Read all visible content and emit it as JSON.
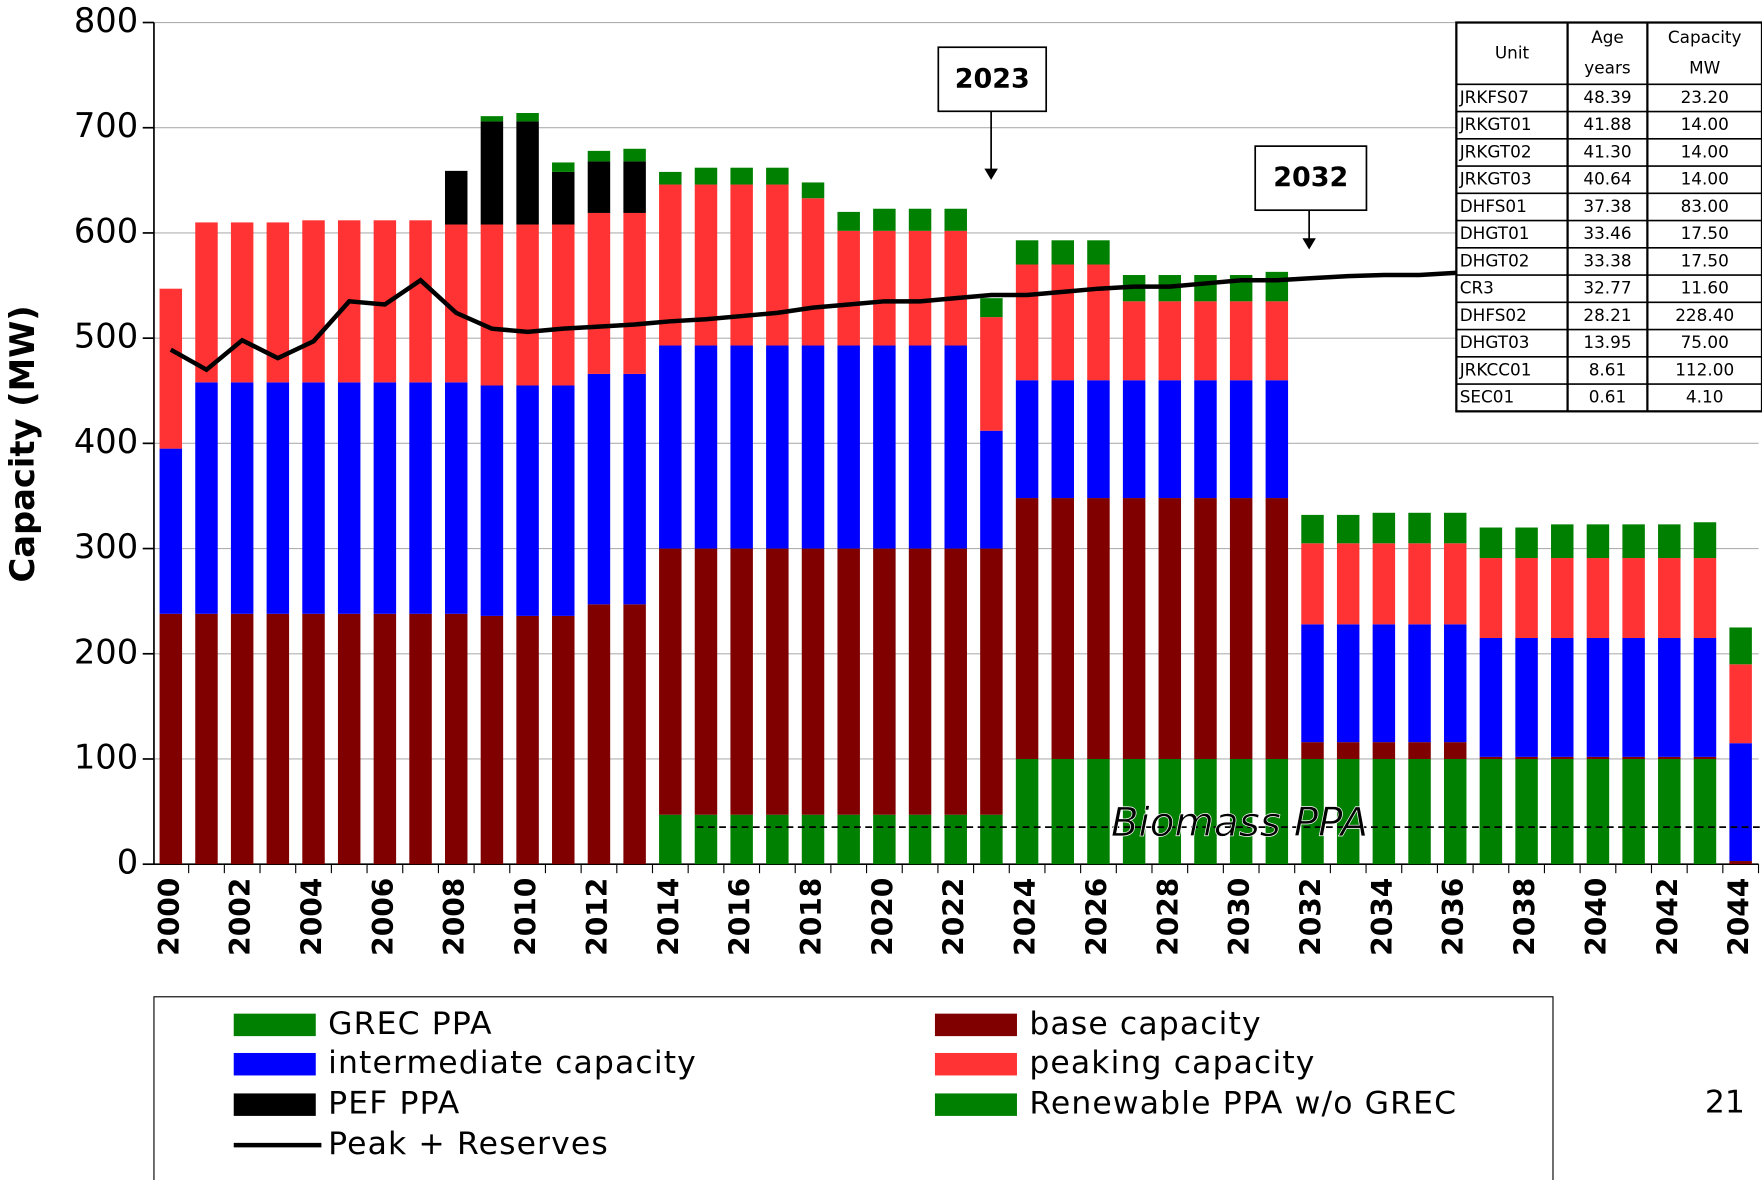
{
  "chart_data": {
    "type": "bar",
    "stacked": true,
    "y_label": "Capacity (MW)",
    "categories": [
      "2000",
      null,
      "2002",
      null,
      "2004",
      null,
      "2006",
      null,
      "2008",
      null,
      "2010",
      null,
      "2012",
      null,
      "2014",
      null,
      "2016",
      null,
      "2018",
      null,
      "2020",
      null,
      "2022",
      null,
      "2024",
      null,
      "2026",
      null,
      "2028",
      null,
      "2030",
      null,
      "2032",
      null,
      "2034",
      null,
      "2036",
      null,
      "2038",
      null,
      "2040",
      null,
      "2042",
      null,
      "2044"
    ],
    "series": [
      {
        "name": "GREC PPA",
        "color": "#008000",
        "values": [
          0,
          0,
          0,
          0,
          0,
          0,
          0,
          0,
          0,
          5,
          8,
          9,
          10,
          12,
          12,
          16,
          16,
          16,
          15,
          18,
          21,
          21,
          21,
          18,
          23,
          23,
          23,
          25,
          25,
          25,
          25,
          28,
          27,
          27,
          29,
          29,
          29,
          29,
          29,
          32,
          32,
          32,
          32,
          34,
          35
        ]
      },
      {
        "name": "base capacity",
        "color": "#800000",
        "values": [
          238,
          238,
          238,
          238,
          238,
          238,
          238,
          238,
          238,
          236,
          236,
          236,
          247,
          247,
          253,
          253,
          253,
          253,
          253,
          253,
          253,
          253,
          253,
          253,
          248,
          248,
          248,
          248,
          248,
          248,
          248,
          248,
          16,
          16,
          16,
          16,
          16,
          2,
          2,
          2,
          2,
          2,
          2,
          2,
          3
        ]
      },
      {
        "name": "intermediate capacity",
        "color": "#0000ff",
        "values": [
          157,
          220,
          220,
          220,
          220,
          220,
          220,
          220,
          220,
          219,
          219,
          219,
          219,
          219,
          193,
          193,
          193,
          193,
          193,
          193,
          193,
          193,
          193,
          112,
          112,
          112,
          112,
          112,
          112,
          112,
          112,
          112,
          112,
          112,
          112,
          112,
          112,
          113,
          113,
          113,
          113,
          113,
          113,
          113,
          112
        ]
      },
      {
        "name": "peaking capacity",
        "color": "#ff3333",
        "values": [
          152,
          152,
          152,
          152,
          154,
          154,
          154,
          154,
          150,
          153,
          153,
          153,
          153,
          153,
          153,
          153,
          153,
          153,
          140,
          109,
          109,
          109,
          109,
          108,
          110,
          110,
          110,
          75,
          75,
          75,
          75,
          75,
          77,
          77,
          77,
          77,
          77,
          76,
          76,
          76,
          76,
          76,
          76,
          76,
          75
        ]
      },
      {
        "name": "PEF PPA",
        "color": "#000000",
        "values": [
          0,
          0,
          0,
          0,
          0,
          0,
          0,
          0,
          51,
          98,
          98,
          50,
          49,
          49,
          0,
          0,
          0,
          0,
          0,
          0,
          0,
          0,
          0,
          0,
          0,
          0,
          0,
          0,
          0,
          0,
          0,
          0,
          0,
          0,
          0,
          0,
          0,
          0,
          0,
          0,
          0,
          0,
          0,
          0,
          0
        ]
      },
      {
        "name": "Renewable PPA w/o GREC",
        "color": "#008000",
        "values": [
          0,
          0,
          0,
          0,
          0,
          0,
          0,
          0,
          0,
          0,
          0,
          0,
          0,
          0,
          47,
          47,
          47,
          47,
          47,
          47,
          47,
          47,
          47,
          47,
          100,
          100,
          100,
          100,
          100,
          100,
          100,
          100,
          100,
          100,
          100,
          100,
          100,
          100,
          100,
          100,
          100,
          100,
          100,
          100,
          0
        ]
      }
    ],
    "line": {
      "name": "Peak + Reserves",
      "color": "#000000",
      "values": [
        489,
        470,
        498,
        481,
        497,
        535,
        532,
        555,
        524,
        509,
        506,
        509,
        511,
        513,
        516,
        518,
        521,
        524,
        529,
        532,
        535,
        535,
        538,
        541,
        541,
        544,
        547,
        549,
        549,
        552,
        555,
        555,
        557,
        559,
        560,
        560,
        562,
        562,
        564,
        565,
        566,
        567,
        568,
        569,
        570
      ]
    },
    "ylim": [
      0,
      800
    ],
    "yticks": [
      0,
      100,
      200,
      300,
      400,
      500,
      600,
      700,
      800
    ],
    "grid": true,
    "annotations": [
      "2023",
      "2032",
      "Biomass PPA"
    ],
    "table": {
      "header": [
        [
          "Unit"
        ],
        [
          "Age",
          "years"
        ],
        [
          "Capacity",
          "MW"
        ]
      ],
      "rows": [
        [
          "JRKFS07",
          "48.39",
          "23.20"
        ],
        [
          "JRKGT01",
          "41.88",
          "14.00"
        ],
        [
          "JRKGT02",
          "41.30",
          "14.00"
        ],
        [
          "JRKGT03",
          "40.64",
          "14.00"
        ],
        [
          "DHFS01",
          "37.38",
          "83.00"
        ],
        [
          "DHGT01",
          "33.46",
          "17.50"
        ],
        [
          "DHGT02",
          "33.38",
          "17.50"
        ],
        [
          "CR3",
          "32.77",
          "11.60"
        ],
        [
          "DHFS02",
          "28.21",
          "228.40"
        ],
        [
          "DHGT03",
          "13.95",
          "75.00"
        ],
        [
          "JRKCC01",
          "8.61",
          "112.00"
        ],
        [
          "SEC01",
          "0.61",
          "4.10"
        ]
      ]
    },
    "page_number": "21"
  }
}
